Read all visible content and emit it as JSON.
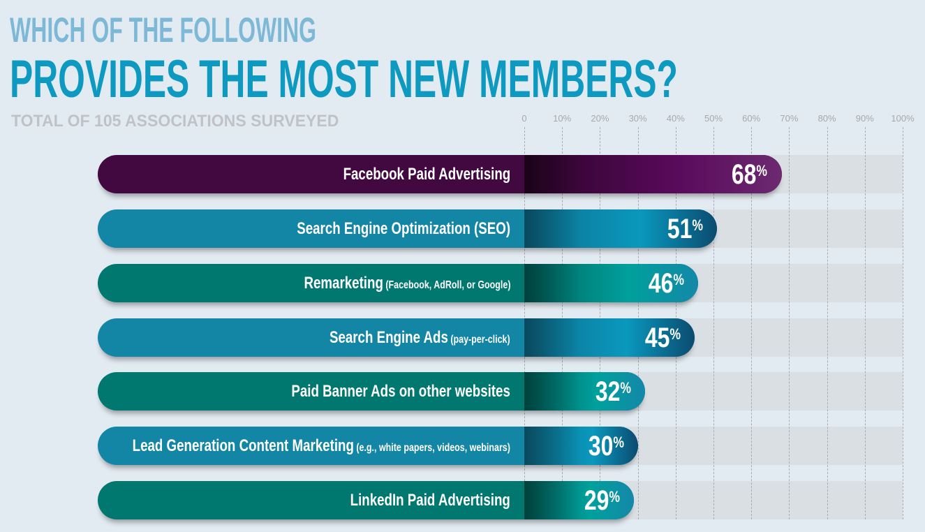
{
  "title_line1": "WHICH OF THE FOLLOWING",
  "title_line2": "PROVIDES THE MOST NEW MEMBERS?",
  "subtitle": "TOTAL OF 105 ASSOCIATIONS SURVEYED",
  "chart_data": {
    "type": "bar",
    "orientation": "horizontal",
    "title": "WHICH OF THE FOLLOWING PROVIDES THE MOST NEW MEMBERS?",
    "subtitle": "TOTAL OF 105 ASSOCIATIONS SURVEYED",
    "xlim": [
      0,
      100
    ],
    "x_ticks": [
      "0",
      "10%",
      "20%",
      "30%",
      "40%",
      "50%",
      "60%",
      "70%",
      "80%",
      "90%",
      "100%"
    ],
    "grid": true,
    "categories": [
      {
        "label": "Facebook Paid Advertising",
        "note": ""
      },
      {
        "label": "Search Engine Optimization (SEO)",
        "note": ""
      },
      {
        "label": "Remarketing",
        "note": "(Facebook, AdRoll, or Google)"
      },
      {
        "label": "Search Engine Ads",
        "note": "(pay-per-click)"
      },
      {
        "label": "Paid Banner Ads on other websites",
        "note": ""
      },
      {
        "label": "Lead Generation Content Marketing",
        "note": "(e.g., white papers, videos, webinars)"
      },
      {
        "label": "LinkedIn Paid Advertising",
        "note": ""
      }
    ],
    "values": [
      68,
      51,
      46,
      45,
      32,
      30,
      29
    ],
    "value_suffix": "%",
    "colors": [
      "#4e0a50",
      "#1385a5",
      "#00786f",
      "#1385a5",
      "#00786f",
      "#1385a5",
      "#00786f"
    ]
  }
}
